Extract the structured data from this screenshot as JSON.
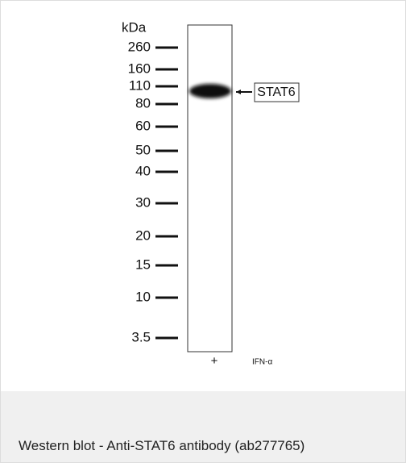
{
  "figure": {
    "unit": "kDa",
    "markers": [
      "260",
      "160",
      "110",
      "80",
      "60",
      "50",
      "40",
      "30",
      "20",
      "15",
      "10",
      "3.5"
    ],
    "band_label": "STAT6",
    "lane_label": "+",
    "treatment": "IFN-α"
  },
  "caption": "Western blot - Anti-STAT6 antibody (ab277765)"
}
